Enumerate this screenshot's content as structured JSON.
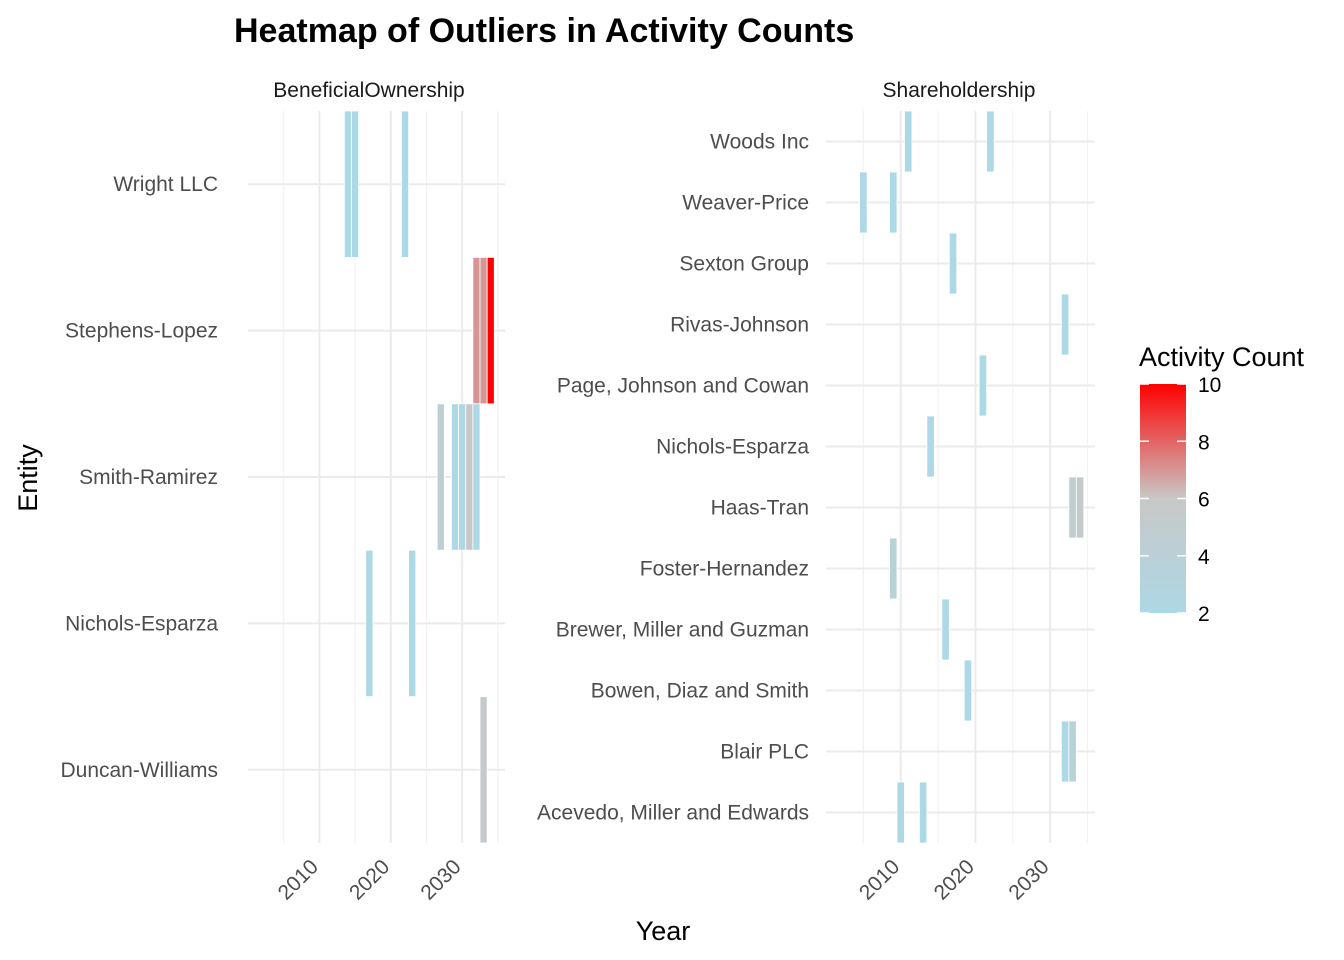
{
  "chart_data": {
    "type": "heatmap",
    "title": "Heatmap of Outliers in Activity Counts",
    "xlabel": "Year",
    "ylabel": "Entity",
    "xlim": [
      2000,
      2036
    ],
    "x_ticks": [
      2010,
      2020,
      2030
    ],
    "color_scale": {
      "low": "#add8e6",
      "mid": "#c8c8c8",
      "high": "#ff0000",
      "domain": [
        2,
        10
      ],
      "ticks": [
        2,
        4,
        6,
        8,
        10
      ]
    },
    "legend": {
      "title": "Activity Count",
      "placement": "right"
    },
    "grid": true,
    "panels": [
      {
        "name": "BeneficialOwnership",
        "entities": [
          "Duncan-Williams",
          "Nichols-Esparza",
          "Smith-Ramirez",
          "Stephens-Lopez",
          "Wright LLC"
        ],
        "cells": [
          {
            "entity": "Wright LLC",
            "year": 2014,
            "count": 2
          },
          {
            "entity": "Wright LLC",
            "year": 2015,
            "count": 2
          },
          {
            "entity": "Wright LLC",
            "year": 2022,
            "count": 2
          },
          {
            "entity": "Stephens-Lopez",
            "year": 2032,
            "count": 7
          },
          {
            "entity": "Stephens-Lopez",
            "year": 2033,
            "count": 7
          },
          {
            "entity": "Stephens-Lopez",
            "year": 2034,
            "count": 10
          },
          {
            "entity": "Smith-Ramirez",
            "year": 2027,
            "count": 4.5
          },
          {
            "entity": "Smith-Ramirez",
            "year": 2029,
            "count": 2
          },
          {
            "entity": "Smith-Ramirez",
            "year": 2030,
            "count": 2
          },
          {
            "entity": "Smith-Ramirez",
            "year": 2031,
            "count": 6
          },
          {
            "entity": "Smith-Ramirez",
            "year": 2032,
            "count": 2
          },
          {
            "entity": "Nichols-Esparza",
            "year": 2017,
            "count": 2
          },
          {
            "entity": "Nichols-Esparza",
            "year": 2023,
            "count": 2
          },
          {
            "entity": "Duncan-Williams",
            "year": 2033,
            "count": 5.5
          }
        ]
      },
      {
        "name": "Shareholdership",
        "entities": [
          "Acevedo, Miller and Edwards",
          "Blair PLC",
          "Bowen, Diaz and Smith",
          "Brewer, Miller and Guzman",
          "Foster-Hernandez",
          "Haas-Tran",
          "Nichols-Esparza",
          "Page, Johnson and Cowan",
          "Rivas-Johnson",
          "Sexton Group",
          "Weaver-Price",
          "Woods Inc"
        ],
        "cells": [
          {
            "entity": "Woods Inc",
            "year": 2011,
            "count": 2
          },
          {
            "entity": "Woods Inc",
            "year": 2022,
            "count": 2
          },
          {
            "entity": "Weaver-Price",
            "year": 2005,
            "count": 2
          },
          {
            "entity": "Weaver-Price",
            "year": 2009,
            "count": 2
          },
          {
            "entity": "Sexton Group",
            "year": 2017,
            "count": 2
          },
          {
            "entity": "Rivas-Johnson",
            "year": 2032,
            "count": 2
          },
          {
            "entity": "Page, Johnson and Cowan",
            "year": 2021,
            "count": 2
          },
          {
            "entity": "Nichols-Esparza",
            "year": 2014,
            "count": 2
          },
          {
            "entity": "Haas-Tran",
            "year": 2033,
            "count": 4.8
          },
          {
            "entity": "Haas-Tran",
            "year": 2034,
            "count": 5.6
          },
          {
            "entity": "Foster-Hernandez",
            "year": 2009,
            "count": 3.6
          },
          {
            "entity": "Brewer, Miller and Guzman",
            "year": 2016,
            "count": 2
          },
          {
            "entity": "Bowen, Diaz and Smith",
            "year": 2019,
            "count": 2
          },
          {
            "entity": "Blair PLC",
            "year": 2032,
            "count": 2
          },
          {
            "entity": "Blair PLC",
            "year": 2033,
            "count": 3.6
          },
          {
            "entity": "Acevedo, Miller and Edwards",
            "year": 2010,
            "count": 2
          },
          {
            "entity": "Acevedo, Miller and Edwards",
            "year": 2013,
            "count": 2
          }
        ]
      }
    ]
  }
}
